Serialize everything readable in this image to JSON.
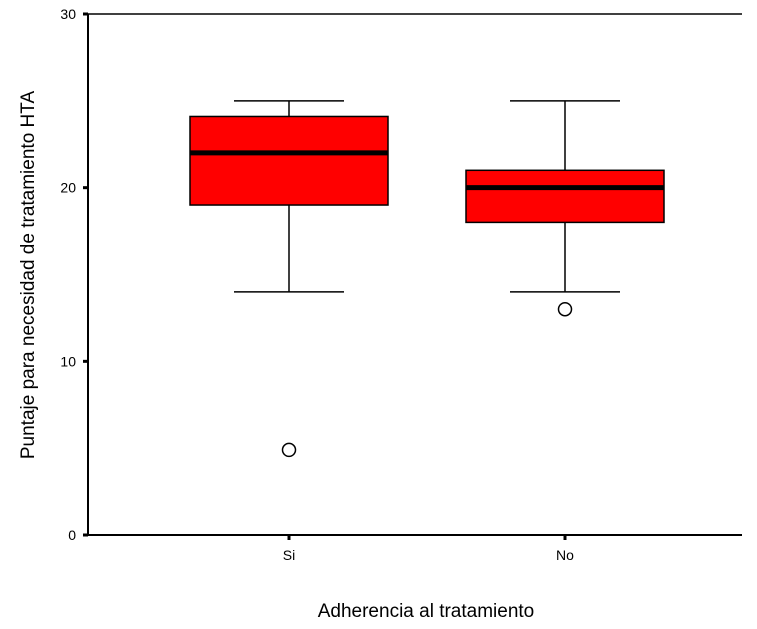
{
  "chart_data": {
    "type": "boxplot",
    "title": "",
    "xlabel": "Adherencia al tratamiento",
    "ylabel": "Puntaje para necesidad de tratamiento HTA",
    "ylim": [
      0,
      30
    ],
    "yticks": [
      0,
      10,
      20,
      30
    ],
    "grid": false,
    "categories": [
      "Si",
      "No"
    ],
    "boxes": [
      {
        "category": "Si",
        "whisker_low": 14,
        "q1": 19,
        "median": 22,
        "q3": 24.1,
        "whisker_high": 25,
        "outliers": [
          4.9
        ]
      },
      {
        "category": "No",
        "whisker_low": 14,
        "q1": 18,
        "median": 20,
        "q3": 21,
        "whisker_high": 25,
        "outliers": [
          13
        ]
      }
    ],
    "box_color": "#ff0000",
    "line_color": "#000000"
  }
}
